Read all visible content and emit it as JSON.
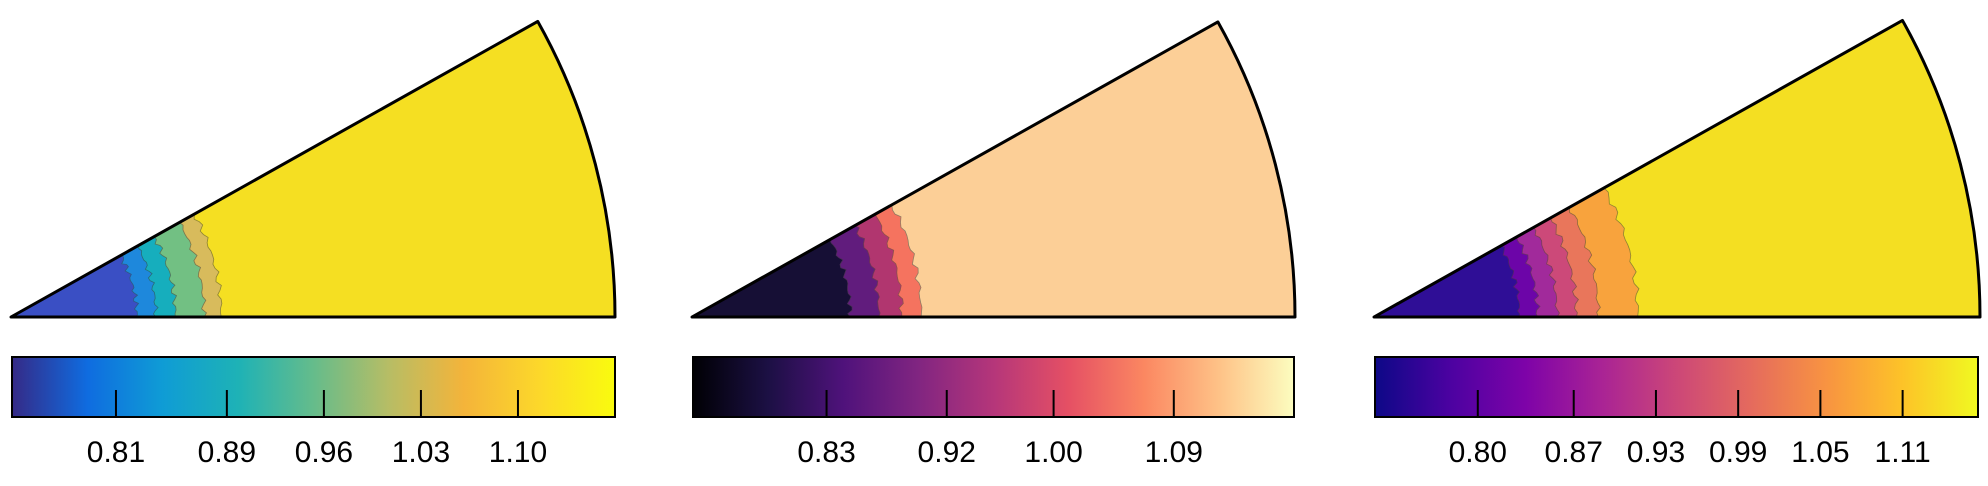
{
  "chart_data": [
    {
      "type": "heatmap",
      "colormap": "parula",
      "bands": [
        {
          "color": "#3a4fc4"
        },
        {
          "color": "#1e88dc"
        },
        {
          "color": "#16aebd"
        },
        {
          "color": "#72c083"
        },
        {
          "color": "#d8bb5c"
        },
        {
          "color": "#f5df22"
        }
      ],
      "colorbar": {
        "ticks": [
          0.81,
          0.89,
          0.96,
          1.03,
          1.1
        ],
        "tick_labels": [
          "0.81",
          "0.89",
          "0.96",
          "1.03",
          "1.10"
        ],
        "range": [
          0.735,
          1.17
        ],
        "gradient": [
          "#352a87",
          "#0f6ce0",
          "#0f9cd5",
          "#1eb2b6",
          "#65bc8b",
          "#b7bd65",
          "#f4b43a",
          "#fcd82a",
          "#f9fb0e"
        ]
      }
    },
    {
      "type": "heatmap",
      "colormap": "magma",
      "bands": [
        {
          "color": "#160f35"
        },
        {
          "color": "#611c7d"
        },
        {
          "color": "#b1366f"
        },
        {
          "color": "#f5735f"
        },
        {
          "color": "#fccf97"
        }
      ],
      "colorbar": {
        "ticks": [
          0.83,
          0.92,
          1.0,
          1.09
        ],
        "tick_labels": [
          "0.83",
          "0.92",
          "1.00",
          "1.09"
        ],
        "range": [
          0.73,
          1.18
        ],
        "gradient": [
          "#000004",
          "#1c1044",
          "#4f127b",
          "#812581",
          "#b5367a",
          "#e55064",
          "#fb8761",
          "#fec287",
          "#fcfdbf"
        ]
      }
    },
    {
      "type": "heatmap",
      "colormap": "plasma",
      "bands": [
        {
          "color": "#2f0e96"
        },
        {
          "color": "#6c05a8"
        },
        {
          "color": "#a12a9b"
        },
        {
          "color": "#cc4979"
        },
        {
          "color": "#e9765b"
        },
        {
          "color": "#f8a33d"
        },
        {
          "color": "#f4df22"
        }
      ],
      "colorbar": {
        "ticks": [
          0.8,
          0.87,
          0.93,
          0.99,
          1.05,
          1.11
        ],
        "tick_labels": [
          "0.80",
          "0.87",
          "0.93",
          "0.99",
          "1.05",
          "1.11"
        ],
        "range": [
          0.725,
          1.165
        ],
        "gradient": [
          "#0d0887",
          "#4c02a1",
          "#7e03a8",
          "#a92395",
          "#cc4778",
          "#e56b5d",
          "#f89441",
          "#fdc328",
          "#f0f921"
        ]
      }
    }
  ]
}
